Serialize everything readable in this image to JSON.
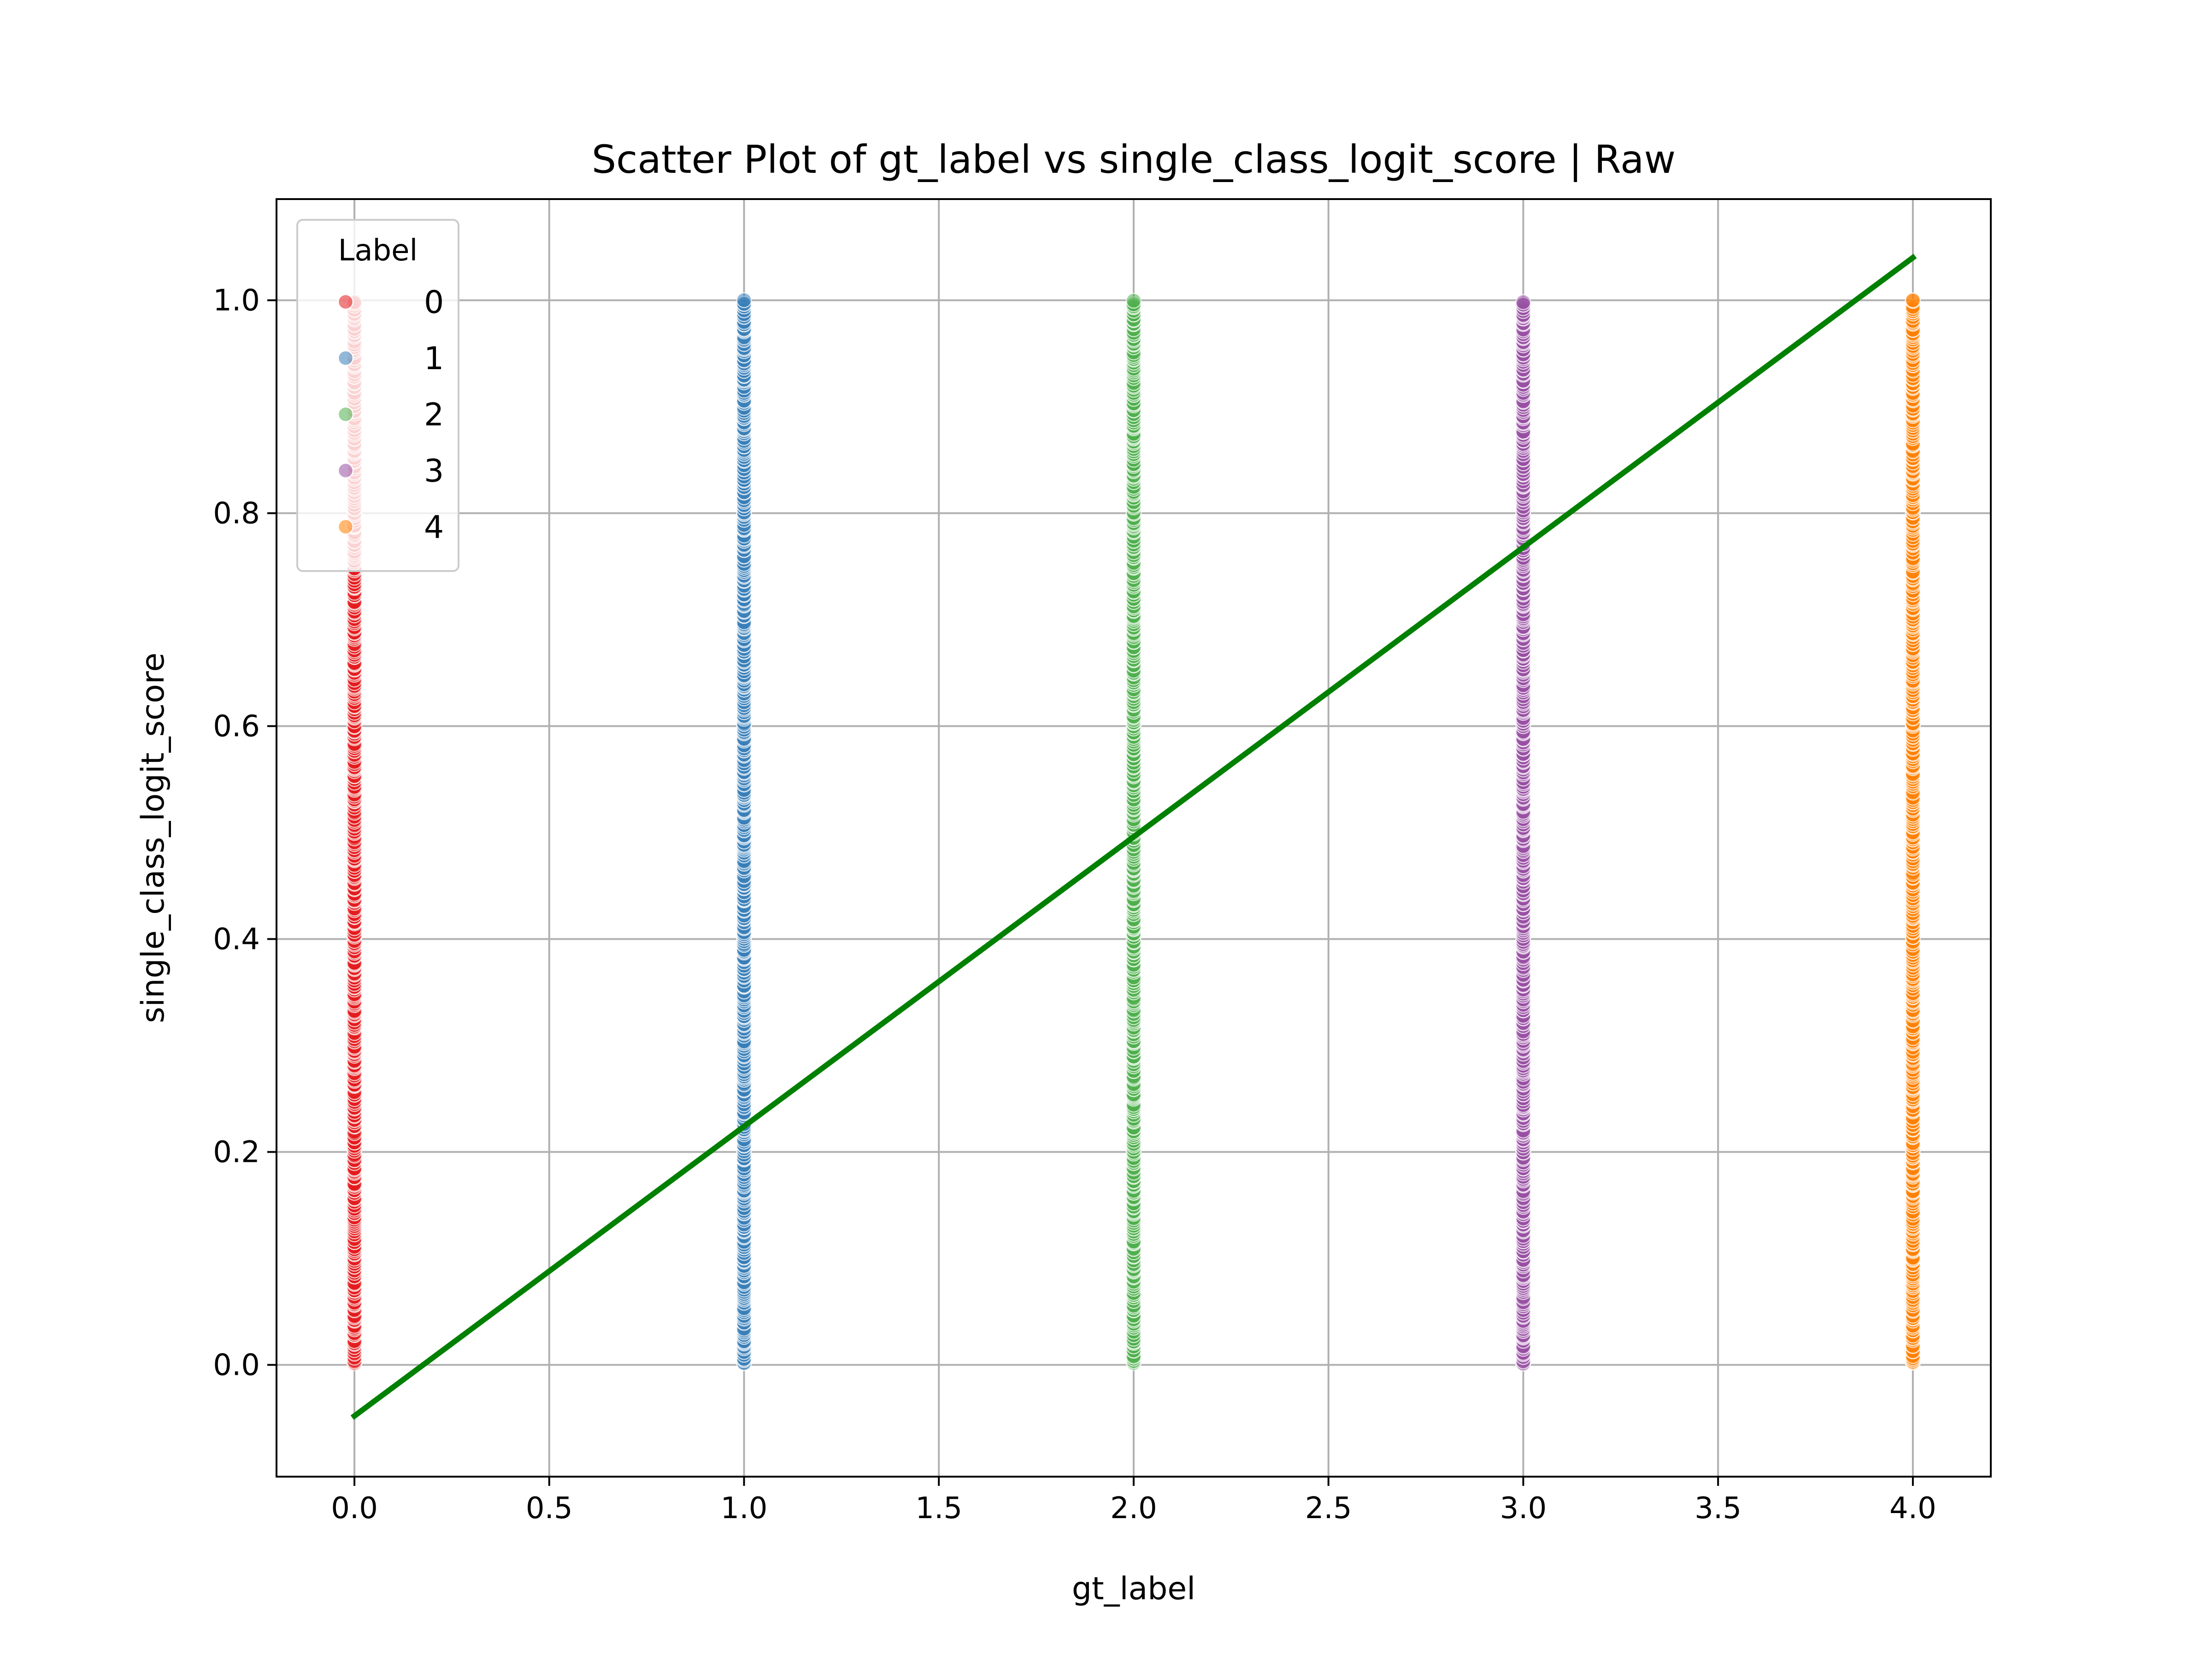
{
  "chart_data": {
    "type": "scatter",
    "title": "Scatter Plot of gt_label vs single_class_logit_score | Raw",
    "xlabel": "gt_label",
    "ylabel": "single_class_logit_score",
    "xlim": [
      -0.2,
      4.2
    ],
    "ylim": [
      -0.105,
      1.095
    ],
    "xticks": [
      0.0,
      0.5,
      1.0,
      1.5,
      2.0,
      2.5,
      3.0,
      3.5,
      4.0
    ],
    "xtick_labels": [
      "0.0",
      "0.5",
      "1.0",
      "1.5",
      "2.0",
      "2.5",
      "3.0",
      "3.5",
      "4.0"
    ],
    "yticks": [
      0.0,
      0.2,
      0.4,
      0.6,
      0.8,
      1.0
    ],
    "ytick_labels": [
      "0.0",
      "0.2",
      "0.4",
      "0.6",
      "0.8",
      "1.0"
    ],
    "grid": true,
    "legend": {
      "title": "Label",
      "placement": "top-left",
      "entries": [
        {
          "label": "0",
          "color": "#e41a1c"
        },
        {
          "label": "1",
          "color": "#377eb8"
        },
        {
          "label": "2",
          "color": "#4daf4a"
        },
        {
          "label": "3",
          "color": "#984ea3"
        },
        {
          "label": "4",
          "color": "#ff7f00"
        }
      ]
    },
    "series": [
      {
        "name": "0",
        "x": 0,
        "y_range": [
          0.0,
          1.0
        ],
        "color": "#e41a1c"
      },
      {
        "name": "1",
        "x": 1,
        "y_range": [
          0.0,
          1.0
        ],
        "color": "#377eb8"
      },
      {
        "name": "2",
        "x": 2,
        "y_range": [
          0.0,
          1.0
        ],
        "color": "#4daf4a"
      },
      {
        "name": "3",
        "x": 3,
        "y_range": [
          0.0,
          1.0
        ],
        "color": "#984ea3"
      },
      {
        "name": "4",
        "x": 4,
        "y_range": [
          0.0,
          1.0
        ],
        "color": "#ff7f00"
      }
    ],
    "regression_line": {
      "x": [
        0.0,
        4.0
      ],
      "y": [
        -0.048,
        1.04
      ],
      "color": "#008000"
    }
  }
}
